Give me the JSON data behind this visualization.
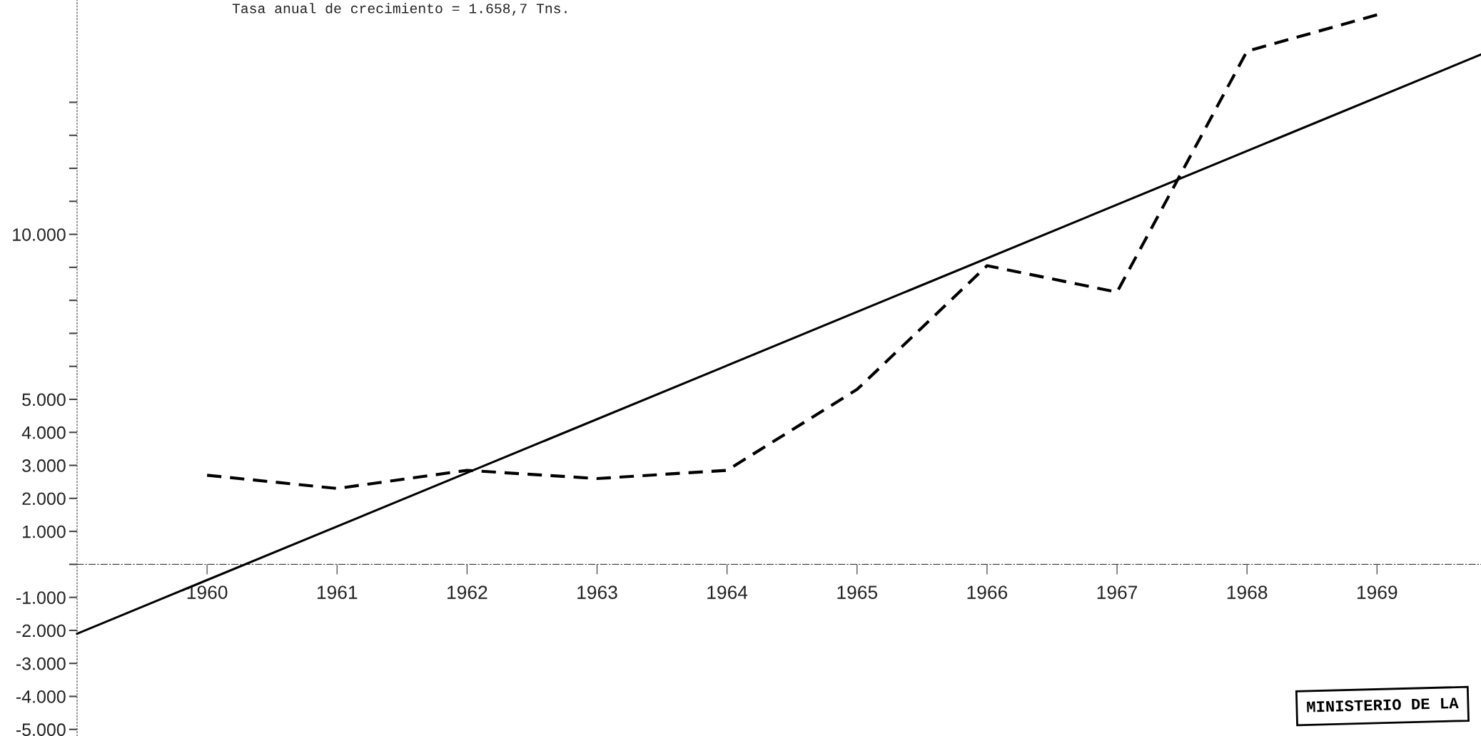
{
  "chart_data": {
    "type": "line",
    "title": "Tasa anual de crecimiento = 1.658,7 Tns.",
    "x": [
      1960,
      1961,
      1962,
      1963,
      1964,
      1965,
      1966,
      1967,
      1968,
      1969
    ],
    "series": [
      {
        "color": "#000000",
        "line_style": "dashed",
        "values": [
          2700,
          2300,
          2850,
          2600,
          2850,
          5300,
          9050,
          8250,
          15550,
          16650
        ]
      },
      {
        "type": "line",
        "color": "#000000",
        "line_style": "solid",
        "x": [
          1959,
          1969.8
        ],
        "values": [
          -2100,
          15450
        ]
      }
    ],
    "xlim": [
      1959,
      1969.8
    ],
    "xticks": [
      1960,
      1961,
      1962,
      1963,
      1964,
      1965,
      1966,
      1967,
      1968,
      1969
    ],
    "ylim": [
      -5200,
      17100
    ],
    "yticks": [
      {
        "value": -5000,
        "label": "-5.000"
      },
      {
        "value": -4000,
        "label": "-4.000"
      },
      {
        "value": -3000,
        "label": "-3.000"
      },
      {
        "value": -2000,
        "label": "-2.000"
      },
      {
        "value": -1000,
        "label": "-1.000"
      },
      {
        "value": 0,
        "label": null
      },
      {
        "value": 1000,
        "label": "1.000"
      },
      {
        "value": 2000,
        "label": "2.000"
      },
      {
        "value": 3000,
        "label": "3.000"
      },
      {
        "value": 4000,
        "label": "4.000"
      },
      {
        "value": 5000,
        "label": "5.000"
      },
      {
        "value": 6000,
        "label": null
      },
      {
        "value": 7000,
        "label": null
      },
      {
        "value": 8000,
        "label": null
      },
      {
        "value": 9000,
        "label": null
      },
      {
        "value": 10000,
        "label": "10.000"
      },
      {
        "value": 11000,
        "label": null
      },
      {
        "value": 12000,
        "label": null
      },
      {
        "value": 13000,
        "label": null
      },
      {
        "value": 14000,
        "label": null
      }
    ],
    "annotations": [
      "MINISTERIO DE LA"
    ]
  }
}
